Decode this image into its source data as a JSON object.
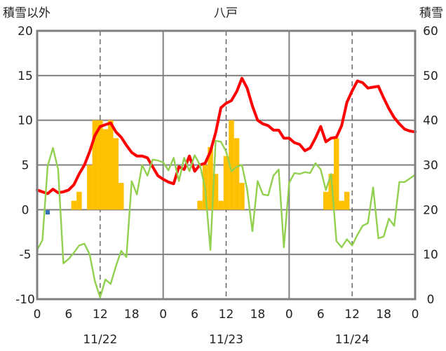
{
  "chart_data": {
    "type": "line",
    "title": "八戸",
    "ylabel_left": "積雪以外",
    "ylabel_right": "積雪",
    "y_left_range": [
      -10,
      20
    ],
    "y_left_ticks": [
      "20",
      "15",
      "10",
      "5",
      "0",
      "-5",
      "-10"
    ],
    "y_right_range": [
      0,
      60
    ],
    "y_right_ticks": [
      "60",
      "50",
      "40",
      "30",
      "20",
      "10",
      "0"
    ],
    "x_range_hours": [
      0,
      72
    ],
    "x_tick_labels": [
      "0",
      "6",
      "12",
      "18",
      "0",
      "6",
      "12",
      "18",
      "0",
      "6",
      "12",
      "18",
      "0"
    ],
    "date_labels": [
      "11/22",
      "11/23",
      "11/24"
    ],
    "grid": {
      "dashed_vertical_at_hours": [
        12,
        36,
        60
      ],
      "solid_vertical_at_hours": [
        24,
        48
      ]
    },
    "series": [
      {
        "type": "bar",
        "axis": "left",
        "color": "#FFC000",
        "x": [
          7,
          8,
          10,
          11,
          12,
          13,
          14,
          15,
          16,
          31,
          32,
          33,
          34,
          35,
          36,
          37,
          38,
          39,
          55,
          56,
          57,
          58,
          59
        ],
        "values": [
          1,
          2,
          5,
          10,
          10,
          9,
          10,
          8,
          3,
          1,
          5,
          7,
          4,
          1,
          6,
          10,
          8,
          3,
          2,
          4,
          8,
          1,
          2
        ]
      },
      {
        "type": "line",
        "axis": "left",
        "color": "#FF0000",
        "x": [
          0,
          1,
          2,
          3,
          4,
          5,
          6,
          7,
          8,
          9,
          10,
          11,
          12,
          13,
          14,
          15,
          16,
          17,
          18,
          19,
          20,
          21,
          22,
          23,
          24,
          25,
          26,
          27,
          28,
          29,
          30,
          31,
          32,
          33,
          34,
          35,
          36,
          37,
          38,
          39,
          40,
          41,
          42,
          43,
          44,
          45,
          46,
          47,
          48,
          49,
          50,
          51,
          52,
          53,
          54,
          55,
          56,
          57,
          58,
          59,
          60,
          61,
          62,
          63,
          64,
          65,
          66,
          67,
          68,
          69,
          70,
          71,
          72
        ],
        "values": [
          2.2,
          2.0,
          1.8,
          2.3,
          1.9,
          2.0,
          2.2,
          2.8,
          4.0,
          5.0,
          6.5,
          8.3,
          9.3,
          9.5,
          9.7,
          8.7,
          8.1,
          7.2,
          6.4,
          6.0,
          6.0,
          5.8,
          4.8,
          3.8,
          3.4,
          3.1,
          2.9,
          4.8,
          4.5,
          6.0,
          4.3,
          5.0,
          5.2,
          6.5,
          8.6,
          11.4,
          11.9,
          12.2,
          13.2,
          14.7,
          13.6,
          11.6,
          10.0,
          9.6,
          9.4,
          8.9,
          8.9,
          8.0,
          8.0,
          7.5,
          7.3,
          6.6,
          6.9,
          8.0,
          9.3,
          7.6,
          8.0,
          8.1,
          9.4,
          12.0,
          13.3,
          14.4,
          14.2,
          13.6,
          13.7,
          13.8,
          12.5,
          11.3,
          10.3,
          9.6,
          9.0,
          8.8,
          8.7
        ]
      },
      {
        "type": "line",
        "axis": "left",
        "color": "#92D050",
        "x": [
          0,
          1,
          2,
          3,
          4,
          5,
          6,
          7,
          8,
          9,
          10,
          11,
          12,
          13,
          14,
          15,
          16,
          17,
          18,
          19,
          20,
          21,
          22,
          23,
          24,
          25,
          26,
          27,
          28,
          29,
          30,
          31,
          32,
          33,
          34,
          35,
          36,
          37,
          38,
          39,
          40,
          41,
          42,
          43,
          44,
          45,
          46,
          47,
          48,
          49,
          50,
          51,
          52,
          53,
          54,
          55,
          56,
          57,
          58,
          59,
          60,
          61,
          62,
          63,
          64,
          65,
          66,
          67,
          68,
          69,
          70,
          71,
          72
        ],
        "values": [
          -4.5,
          -3.4,
          4.9,
          6.9,
          4.5,
          -6.0,
          -5.5,
          -4.8,
          -4.0,
          -3.8,
          -5.0,
          -8.0,
          -9.8,
          -7.8,
          -8.3,
          -6.3,
          -4.6,
          -5.3,
          3.2,
          1.7,
          5.0,
          3.8,
          5.6,
          5.5,
          5.3,
          4.4,
          5.8,
          3.2,
          5.8,
          4.3,
          6.1,
          5.0,
          2.4,
          -4.5,
          7.7,
          7.6,
          6.5,
          4.3,
          4.8,
          5.0,
          2.3,
          -2.4,
          3.2,
          1.7,
          1.6,
          3.8,
          4.5,
          -4.2,
          3.0,
          4.1,
          4.0,
          4.2,
          4.1,
          5.2,
          4.5,
          2.2,
          4.0,
          -3.5,
          -4.2,
          -3.3,
          -4.0,
          -2.8,
          -1.8,
          -1.5,
          2.5,
          -3.2,
          -3.0,
          -1.0,
          -1.8,
          3.1,
          3.1,
          3.5,
          3.9
        ]
      },
      {
        "type": "point",
        "axis": "left",
        "color": "#2E75B6",
        "x": [
          2
        ],
        "values": [
          -0.3
        ]
      },
      {
        "type": "line",
        "axis": "right",
        "color": "#7030A0",
        "x": [
          0,
          72
        ],
        "values": [
          0,
          0
        ]
      }
    ]
  }
}
